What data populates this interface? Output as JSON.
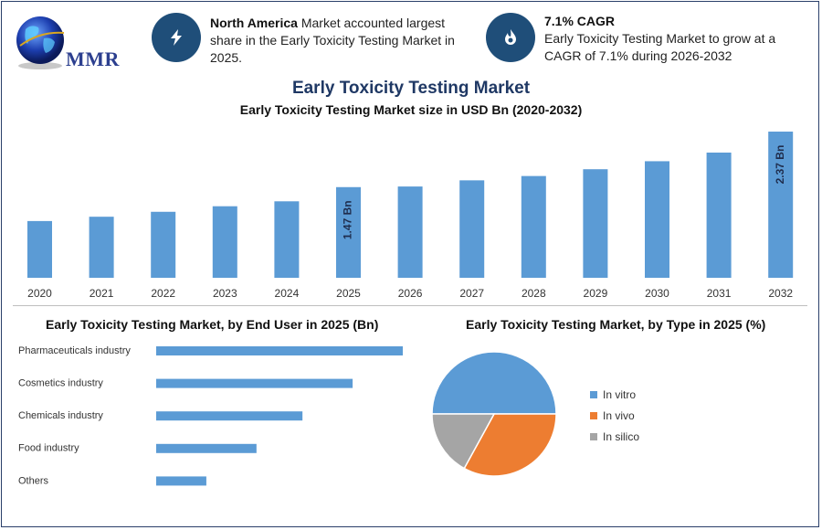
{
  "brand": {
    "name": "MMR"
  },
  "info": [
    {
      "icon": "lightning-icon",
      "bold": "North America",
      "text": " Market accounted largest share in the Early Toxicity Testing Market in 2025."
    },
    {
      "icon": "flame-icon",
      "bold": "7.1% CAGR",
      "text": "Early Toxicity Testing Market to grow at a CAGR of 7.1% during 2026-2032"
    }
  ],
  "main_title": "Early Toxicity Testing Market",
  "colors": {
    "bar": "#5b9bd5",
    "accent": "#1f4e79",
    "in_vitro": "#5b9bd5",
    "in_vivo": "#ed7d31",
    "in_silico": "#a5a5a5"
  },
  "chart_data": [
    {
      "type": "bar",
      "title": "Early Toxicity Testing Market size in USD Bn (2020-2032)",
      "categories": [
        "2020",
        "2021",
        "2022",
        "2023",
        "2024",
        "2025",
        "2026",
        "2027",
        "2028",
        "2029",
        "2030",
        "2031",
        "2032"
      ],
      "values": [
        0.92,
        0.99,
        1.07,
        1.16,
        1.24,
        1.47,
        1.48,
        1.58,
        1.65,
        1.76,
        1.89,
        2.03,
        2.37
      ],
      "data_labels": {
        "2025": "1.47 Bn",
        "2032": "2.37 Bn"
      },
      "ylim": [
        0,
        2.4
      ],
      "grid": false
    },
    {
      "type": "bar",
      "orientation": "horizontal",
      "title": "Early Toxicity Testing Market, by End User in 2025 (Bn)",
      "categories": [
        "Pharmaceuticals industry",
        "Cosmetics industry",
        "Chemicals industry",
        "Food industry",
        "Others"
      ],
      "values": [
        0.59,
        0.47,
        0.35,
        0.24,
        0.12
      ],
      "grid": false
    },
    {
      "type": "pie",
      "title": "Early Toxicity Testing Market, by Type in 2025 (%)",
      "categories": [
        "In vitro",
        "In vivo",
        "In silico"
      ],
      "values": [
        50,
        33,
        17
      ],
      "legend_position": "right"
    }
  ]
}
